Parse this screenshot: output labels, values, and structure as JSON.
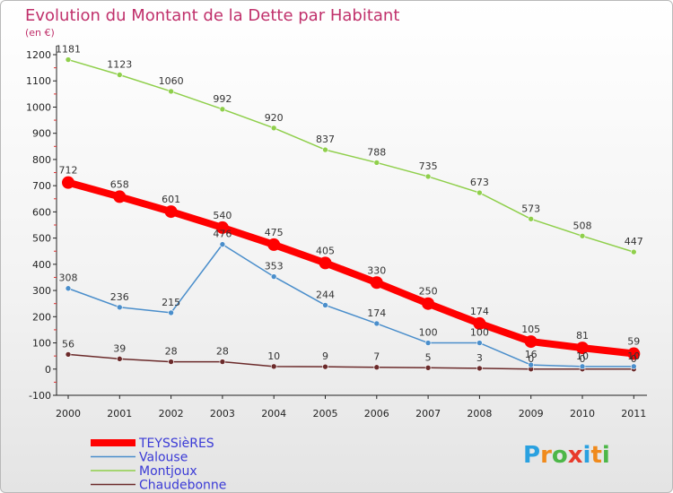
{
  "chart_data": {
    "type": "line",
    "title": "Evolution du Montant de la Dette par Habitant",
    "subtitle": "(en €)",
    "x": [
      "2000",
      "2001",
      "2002",
      "2003",
      "2004",
      "2005",
      "2006",
      "2007",
      "2008",
      "2009",
      "2010",
      "2011"
    ],
    "ylim": [
      -100,
      1200
    ],
    "yticks": [
      -100,
      0,
      100,
      200,
      300,
      400,
      500,
      600,
      700,
      800,
      900,
      1000,
      1100,
      1200
    ],
    "grid": false,
    "legend_position": "bottom-left",
    "series": [
      {
        "name": "TEYSSièRES",
        "color": "#ff0000",
        "emphasis": true,
        "values": [
          712,
          658,
          601,
          540,
          475,
          405,
          330,
          250,
          174,
          105,
          81,
          59
        ]
      },
      {
        "name": "Valouse",
        "color": "#4a8ecb",
        "values": [
          308,
          236,
          215,
          476,
          353,
          244,
          174,
          100,
          100,
          16,
          10,
          10
        ]
      },
      {
        "name": "Montjoux",
        "color": "#8fcf4b",
        "values": [
          1181,
          1123,
          1060,
          992,
          920,
          837,
          788,
          735,
          673,
          573,
          508,
          447
        ]
      },
      {
        "name": "Chaudebonne",
        "color": "#6b2a2a",
        "values": [
          56,
          39,
          28,
          28,
          10,
          9,
          7,
          5,
          3,
          0,
          0,
          0
        ]
      }
    ]
  },
  "logo": {
    "text": "Proxiti",
    "colors": [
      "#2aa1e0",
      "#f08a1c",
      "#4db748",
      "#e83a2b",
      "#2aa1e0",
      "#f08a1c",
      "#4db748"
    ]
  }
}
